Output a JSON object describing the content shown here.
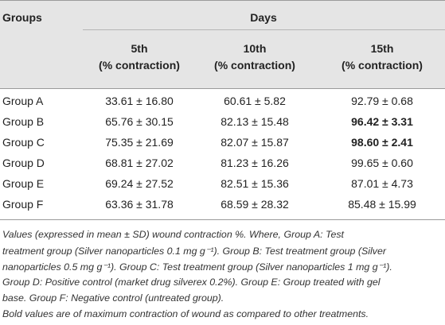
{
  "table": {
    "corner_header": "Groups",
    "span_header": "Days",
    "column_headers": [
      {
        "day": "5th",
        "unit": "(% contraction)"
      },
      {
        "day": "10th",
        "unit": "(% contraction)"
      },
      {
        "day": "15th",
        "unit": "(% contraction)"
      }
    ],
    "rows": [
      {
        "group": "Group A",
        "values": [
          "33.61 ± 16.80",
          "60.61 ± 5.82",
          "92.79 ± 0.68"
        ],
        "bold": [
          false,
          false,
          false
        ]
      },
      {
        "group": "Group B",
        "values": [
          "65.76 ± 30.15",
          "82.13 ± 15.48",
          "96.42 ± 3.31"
        ],
        "bold": [
          false,
          false,
          true
        ]
      },
      {
        "group": "Group C",
        "values": [
          "75.35 ± 21.69",
          "82.07 ± 15.87",
          "98.60 ± 2.41"
        ],
        "bold": [
          false,
          false,
          true
        ]
      },
      {
        "group": "Group D",
        "values": [
          "68.81 ± 27.02",
          "81.23 ± 16.26",
          "99.65 ± 0.60"
        ],
        "bold": [
          false,
          false,
          false
        ]
      },
      {
        "group": "Group E",
        "values": [
          "69.24 ± 27.52",
          "82.51 ± 15.36",
          "87.01 ± 4.73"
        ],
        "bold": [
          false,
          false,
          false
        ]
      },
      {
        "group": "Group F",
        "values": [
          "63.36 ± 31.78",
          "68.59 ± 28.32",
          "85.48 ± 15.99"
        ],
        "bold": [
          false,
          false,
          false
        ]
      }
    ]
  },
  "footnote": {
    "lines": [
      "Values (expressed in mean ± SD) wound contraction %. Where, Group A: Test",
      "treatment group (Silver nanoparticles 0.1 mg g⁻¹). Group B: Test treatment group (Silver",
      "nanoparticles 0.5 mg g⁻¹). Group C: Test treatment group (Silver nanoparticles 1 mg g⁻¹).",
      "Group D: Positive control (market drug silverex 0.2%). Group E: Group treated with gel",
      "base. Group F: Negative control (untreated group).",
      "Bold values are of maximum contraction of wound as compared to other treatments."
    ]
  }
}
